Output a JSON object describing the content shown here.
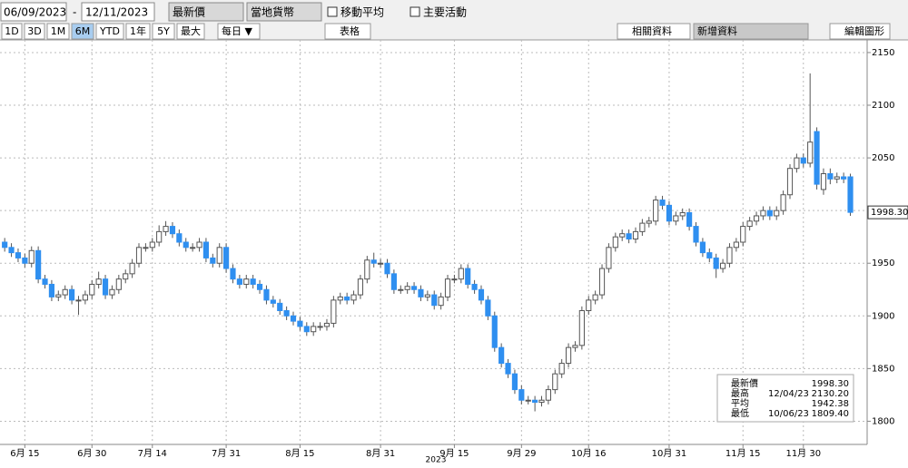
{
  "toolbar": {
    "start_date": "06/09/2023",
    "end_date": "12/11/2023",
    "field": "最新價",
    "currency": "當地貨幣",
    "moving_average": "移動平均",
    "events": "主要活動",
    "ranges": [
      "1D",
      "3D",
      "1M",
      "6M",
      "YTD",
      "1年",
      "5Y",
      "最大"
    ],
    "frequency": "每日 ▼",
    "table": "表格",
    "related": "相關資料",
    "add_data": "新增資料",
    "edit_chart": "編輯圖形"
  },
  "chart_data": {
    "type": "candlestick",
    "year_label": "2023",
    "open": [
      1970,
      1965,
      1960,
      1955,
      1950,
      1962,
      1935,
      1930,
      1918,
      1920,
      1925,
      1915,
      1915,
      1920,
      1930,
      1935,
      1920,
      1925,
      1935,
      1940,
      1950,
      1965,
      1965,
      1970,
      1980,
      1985,
      1978,
      1970,
      1965,
      1965,
      1970,
      1955,
      1950,
      1965,
      1945,
      1935,
      1930,
      1935,
      1930,
      1925,
      1915,
      1912,
      1905,
      1900,
      1895,
      1890,
      1885,
      1890,
      1890,
      1893,
      1915,
      1918,
      1915,
      1920,
      1935,
      1953,
      1950,
      1950,
      1940,
      1925,
      1925,
      1928,
      1925,
      1918,
      1920,
      1910,
      1918,
      1935,
      1935,
      1945,
      1930,
      1925,
      1915,
      1900,
      1870,
      1855,
      1845,
      1830,
      1820,
      1820,
      1818,
      1820,
      1830,
      1845,
      1855,
      1870,
      1872,
      1905,
      1915,
      1920,
      1945,
      1965,
      1975,
      1978,
      1973,
      1980,
      1988,
      1990,
      2010,
      2005,
      1990,
      1995,
      1998,
      1985,
      1970,
      1960,
      1955,
      1945,
      1950,
      1965,
      1970,
      1985,
      1990,
      1995,
      2000,
      1995,
      2000,
      2015,
      2040,
      2050,
      2045,
      2075,
      2020,
      2035,
      2030,
      2032,
      2032
    ],
    "high": [
      1974,
      1969,
      1964,
      1959,
      1966,
      1966,
      1939,
      1934,
      1924,
      1929,
      1929,
      1919,
      1924,
      1934,
      1942,
      1939,
      1929,
      1939,
      1944,
      1954,
      1969,
      1969,
      1974,
      1986,
      1990,
      1989,
      1982,
      1974,
      1969,
      1974,
      1974,
      1959,
      1969,
      1969,
      1949,
      1939,
      1939,
      1939,
      1934,
      1929,
      1919,
      1916,
      1909,
      1904,
      1899,
      1894,
      1894,
      1894,
      1897,
      1919,
      1922,
      1922,
      1924,
      1939,
      1957,
      1960,
      1954,
      1954,
      1944,
      1929,
      1932,
      1932,
      1929,
      1924,
      1924,
      1922,
      1939,
      1939,
      1949,
      1949,
      1934,
      1929,
      1919,
      1904,
      1874,
      1859,
      1849,
      1834,
      1824,
      1824,
      1824,
      1834,
      1849,
      1859,
      1874,
      1876,
      1909,
      1919,
      1924,
      1949,
      1969,
      1979,
      1982,
      1982,
      1984,
      1992,
      1994,
      2014,
      2014,
      2009,
      1999,
      2002,
      2002,
      1989,
      1974,
      1964,
      1959,
      1954,
      1969,
      1974,
      1989,
      1994,
      1999,
      2004,
      2004,
      2004,
      2019,
      2044,
      2054,
      2054,
      2130.2,
      2079,
      2040,
      2040,
      2036,
      2036,
      2035
    ],
    "low": [
      1961,
      1956,
      1951,
      1946,
      1946,
      1931,
      1926,
      1914,
      1914,
      1916,
      1911,
      1901,
      1911,
      1916,
      1926,
      1916,
      1916,
      1921,
      1931,
      1936,
      1946,
      1961,
      1961,
      1966,
      1976,
      1974,
      1966,
      1961,
      1961,
      1961,
      1951,
      1946,
      1946,
      1941,
      1931,
      1926,
      1926,
      1926,
      1921,
      1911,
      1908,
      1901,
      1896,
      1891,
      1886,
      1881,
      1881,
      1886,
      1886,
      1889,
      1911,
      1911,
      1911,
      1916,
      1931,
      1946,
      1946,
      1936,
      1921,
      1921,
      1921,
      1921,
      1914,
      1914,
      1906,
      1906,
      1914,
      1931,
      1931,
      1926,
      1921,
      1911,
      1896,
      1866,
      1851,
      1841,
      1826,
      1816,
      1816,
      1809.4,
      1814,
      1816,
      1826,
      1841,
      1851,
      1866,
      1868,
      1901,
      1911,
      1916,
      1941,
      1961,
      1971,
      1969,
      1969,
      1976,
      1984,
      1986,
      2001,
      1986,
      1986,
      1991,
      1981,
      1966,
      1956,
      1951,
      1936,
      1941,
      1946,
      1961,
      1966,
      1981,
      1986,
      1991,
      1991,
      1991,
      1996,
      2011,
      2036,
      2041,
      2041,
      2020,
      2015,
      2025,
      2026,
      2026,
      1995
    ],
    "close": [
      1965,
      1960,
      1955,
      1950,
      1962,
      1935,
      1930,
      1918,
      1920,
      1925,
      1915,
      1915,
      1920,
      1930,
      1935,
      1920,
      1925,
      1935,
      1940,
      1950,
      1965,
      1965,
      1970,
      1980,
      1985,
      1978,
      1970,
      1965,
      1965,
      1970,
      1955,
      1950,
      1965,
      1945,
      1935,
      1930,
      1935,
      1930,
      1925,
      1915,
      1912,
      1905,
      1900,
      1895,
      1890,
      1885,
      1890,
      1890,
      1893,
      1915,
      1918,
      1915,
      1920,
      1935,
      1953,
      1950,
      1950,
      1940,
      1925,
      1925,
      1928,
      1925,
      1918,
      1920,
      1910,
      1918,
      1935,
      1935,
      1945,
      1930,
      1925,
      1915,
      1900,
      1870,
      1855,
      1845,
      1830,
      1820,
      1820,
      1818,
      1820,
      1830,
      1845,
      1855,
      1870,
      1872,
      1905,
      1915,
      1920,
      1945,
      1965,
      1975,
      1978,
      1973,
      1980,
      1988,
      1990,
      2010,
      2005,
      1990,
      1995,
      1998,
      1985,
      1970,
      1960,
      1955,
      1945,
      1950,
      1965,
      1970,
      1985,
      1990,
      1995,
      2000,
      1995,
      2000,
      2015,
      2040,
      2050,
      2045,
      2065,
      2025,
      2035,
      2030,
      2032,
      2030,
      1998.3
    ],
    "up_color": "#ffffff",
    "down_color": "#2f8ff0",
    "xticks": [
      {
        "value": 3,
        "label": "6月 15"
      },
      {
        "value": 13,
        "label": "6月 30"
      },
      {
        "value": 22,
        "label": "7月 14"
      },
      {
        "value": 33,
        "label": "7月 31"
      },
      {
        "value": 44,
        "label": "8月 15"
      },
      {
        "value": 56,
        "label": "8月 31"
      },
      {
        "value": 67,
        "label": "9月 15"
      },
      {
        "value": 77,
        "label": "9月 29"
      },
      {
        "value": 87,
        "label": "10月 16"
      },
      {
        "value": 99,
        "label": "10月 31"
      },
      {
        "value": 110,
        "label": "11月 15"
      },
      {
        "value": 119,
        "label": "11月 30"
      }
    ],
    "xlim": [
      -0.7,
      128.5
    ],
    "ylim": [
      1778,
      2162
    ],
    "yticks": [
      1800,
      1850,
      1900,
      1950,
      2000,
      2050,
      2100,
      2150
    ],
    "grid": true,
    "last_price_label": "1998.30",
    "stats": [
      {
        "name": "最新價",
        "date": "",
        "value": "1998.30"
      },
      {
        "name": "最高",
        "date": "12/04/23",
        "value": "2130.20"
      },
      {
        "name": "平均",
        "date": "",
        "value": "1942.38"
      },
      {
        "name": "最低",
        "date": "10/06/23",
        "value": "1809.40"
      }
    ]
  }
}
